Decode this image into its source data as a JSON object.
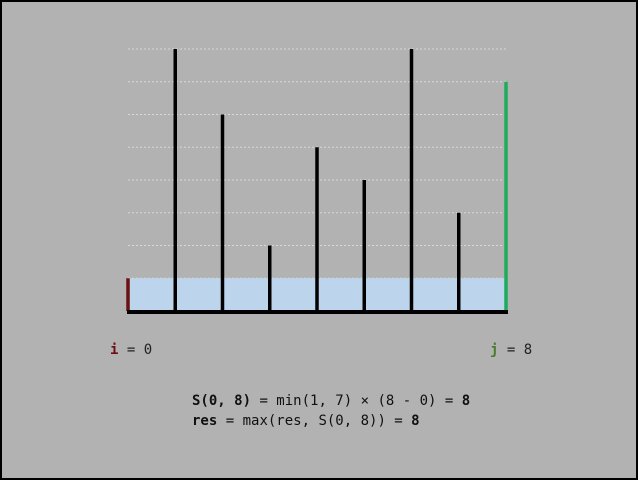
{
  "heights": [
    1,
    8,
    6,
    2,
    5,
    4,
    8,
    3,
    7
  ],
  "i": {
    "name": "i",
    "eq": " = ",
    "value": "0",
    "color": "#6b0f12"
  },
  "j": {
    "name": "j",
    "eq": " = ",
    "value": "8",
    "color": "#4c7a2a"
  },
  "area_fill": "#bcd4ec",
  "right_bar_color": "#1eab5c",
  "left_bar_color": "#6b0f12",
  "bar_color": "#000000",
  "formula": {
    "line1_label": "S(0, 8)",
    "line1_expr": " = min(1, 7) × (8 - 0) = ",
    "line1_result": "8",
    "line2_label": "res",
    "line2_expr": " = max(res, S(0, 8)) = ",
    "line2_result": "8"
  }
}
